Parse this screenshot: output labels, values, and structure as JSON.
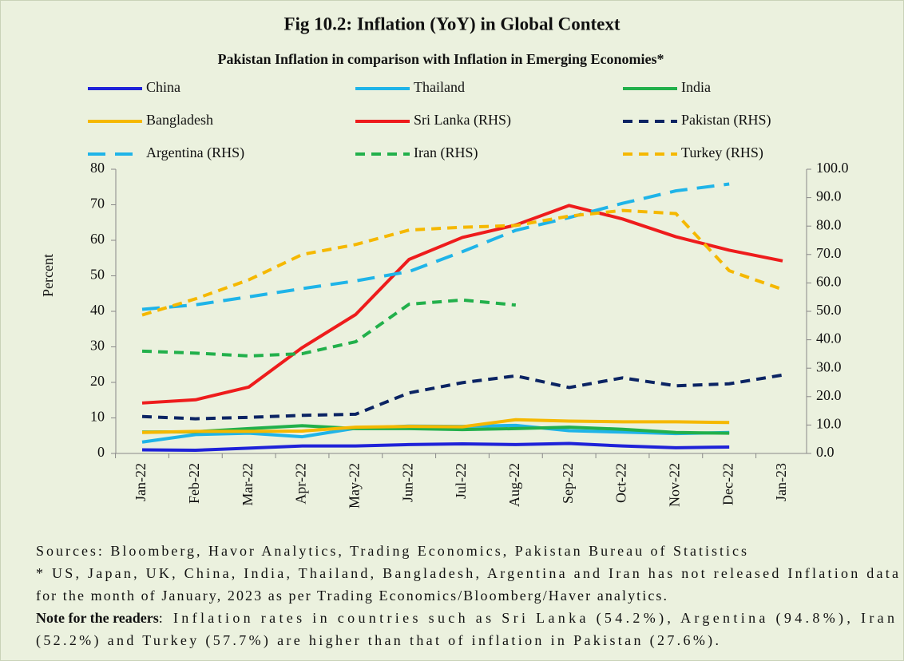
{
  "chart_data": {
    "type": "line",
    "title": "Fig 10.2: Inflation (YoY) in Global Context",
    "subtitle": "Pakistan Inflation in comparison with Inflation in Emerging Economies*",
    "ylabel": "Percent",
    "categories": [
      "Jan-22",
      "Feb-22",
      "Mar-22",
      "Apr-22",
      "May-22",
      "Jun-22",
      "Jul-22",
      "Aug-22",
      "Sep-22",
      "Oct-22",
      "Nov-22",
      "Dec-22",
      "Jan-23"
    ],
    "ylim": [
      0,
      80
    ],
    "yticks": [
      0,
      10,
      20,
      30,
      40,
      50,
      60,
      70,
      80
    ],
    "y2lim": [
      0,
      100
    ],
    "y2ticks": [
      {
        "value": 0,
        "label": "0.0"
      },
      {
        "value": 10,
        "label": "10.0"
      },
      {
        "value": 20,
        "label": "20.0"
      },
      {
        "value": 30,
        "label": "30.0"
      },
      {
        "value": 40,
        "label": "40.0"
      },
      {
        "value": 50,
        "label": "50.0"
      },
      {
        "value": 60,
        "label": "60.0"
      },
      {
        "value": 70,
        "label": "70.0"
      },
      {
        "value": 80,
        "label": "80.0"
      },
      {
        "value": 90,
        "label": "90.0"
      },
      {
        "value": 100,
        "label": "100.0"
      }
    ],
    "grid": false,
    "legend": "top",
    "series": [
      {
        "name": "China",
        "color": "#1f22d8",
        "style": "solid",
        "values": [
          1.0,
          0.9,
          1.5,
          2.1,
          2.1,
          2.5,
          2.7,
          2.5,
          2.8,
          2.1,
          1.6,
          1.8,
          null
        ]
      },
      {
        "name": "Thailand",
        "color": "#1fb4e8",
        "style": "solid",
        "values": [
          3.2,
          5.3,
          5.7,
          4.7,
          7.1,
          7.7,
          7.6,
          7.9,
          6.4,
          6.0,
          5.6,
          5.9,
          null
        ]
      },
      {
        "name": "India",
        "color": "#22b04b",
        "style": "solid",
        "values": [
          6.0,
          6.1,
          7.0,
          7.8,
          7.0,
          7.0,
          6.7,
          7.0,
          7.4,
          6.8,
          5.9,
          5.7,
          null
        ]
      },
      {
        "name": "Bangladesh",
        "color": "#f5b800",
        "style": "solid",
        "values": [
          5.9,
          6.2,
          6.2,
          6.3,
          7.4,
          7.6,
          7.5,
          9.5,
          9.1,
          8.9,
          8.9,
          8.7,
          null
        ]
      },
      {
        "name": "Sri Lanka  (RHS)",
        "color": "#ee1c1c",
        "style": "solid",
        "values": [
          14.2,
          15.1,
          18.7,
          29.8,
          39.1,
          54.6,
          60.8,
          64.3,
          69.8,
          66.0,
          61.0,
          57.2,
          54.2
        ]
      },
      {
        "name": "Pakistan (RHS)",
        "color": "#0b2463",
        "style": "dashed",
        "axis": "y2",
        "values": [
          13.0,
          12.2,
          12.7,
          13.4,
          13.8,
          21.3,
          24.9,
          27.3,
          23.2,
          26.6,
          23.8,
          24.5,
          27.6
        ]
      },
      {
        "name": "Argentina (RHS)",
        "color": "#1fb4e8",
        "style": "longdash",
        "axis": "y2",
        "values": [
          50.7,
          52.3,
          55.1,
          58.0,
          60.7,
          64.0,
          71.0,
          78.5,
          83.0,
          88.0,
          92.4,
          94.8,
          null
        ]
      },
      {
        "name": "Iran (RHS)",
        "color": "#22b04b",
        "style": "dashed",
        "axis": "y2",
        "values": [
          36.0,
          35.3,
          34.3,
          35.1,
          39.3,
          52.5,
          54.0,
          52.2,
          null,
          null,
          null,
          null,
          null
        ]
      },
      {
        "name": "Turkey (RHS)",
        "color": "#f5b800",
        "style": "dashed",
        "axis": "y2",
        "values": [
          48.7,
          54.4,
          61.1,
          70.0,
          73.5,
          78.6,
          79.6,
          80.2,
          83.5,
          85.5,
          84.4,
          64.3,
          57.7
        ]
      }
    ]
  },
  "sources": [
    "Sources: Bloomberg, Havor Analytics, Trading Economics, Pakistan Bureau of Statistics",
    "* US, Japan, UK, China, India, Thailand, Bangladesh, Argentina and Iran has not released Inflation data",
    "for the month of January, 2023 as per Trading Economics/Bloomberg/Haver analytics."
  ],
  "note": {
    "label": "Note for the readers",
    "lines": [
      ": Inflation rates in countries such as Sri Lanka (54.2%), Argentina (94.8%), Iran",
      "(52.2%) and Turkey (57.7%) are higher than that of inflation in Pakistan (27.6%)."
    ]
  }
}
